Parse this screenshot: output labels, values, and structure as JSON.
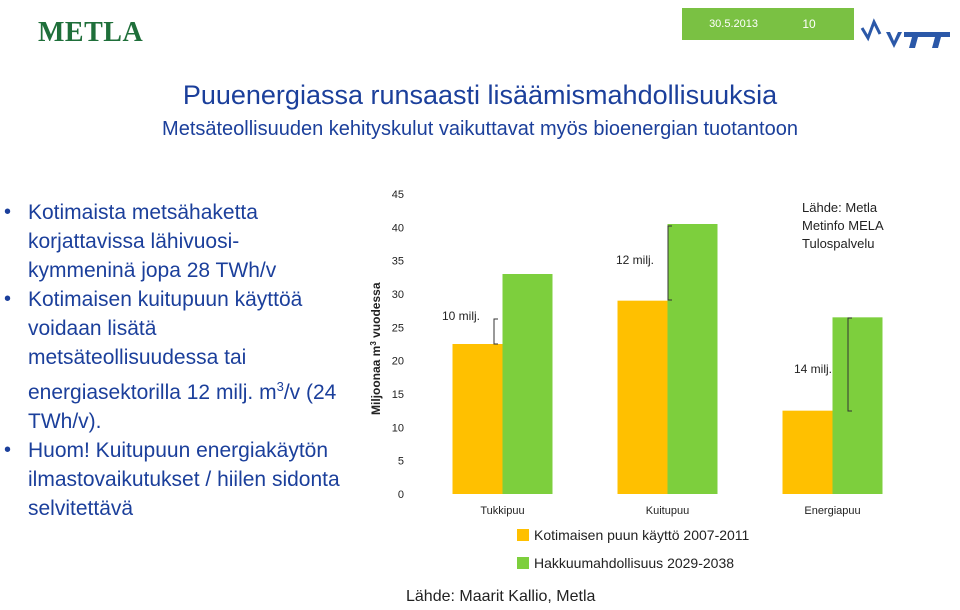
{
  "header": {
    "logo_text": "METLA",
    "date": "30.5.2013",
    "page_number": "10",
    "colors": {
      "accent_green": "#7ac143",
      "title_blue": "#1b3f9b",
      "logo_green": "#1f6f3a",
      "vtt_blue": "#2b58a8"
    }
  },
  "title": "Puuenergiassa runsaasti lisäämismahdollisuuksia",
  "subtitle": "Metsäteollisuuden kehityskulut vaikuttavat myös bioenergian tuotantoon",
  "bullets": [
    {
      "text": "Kotimaista metsähaketta korjattavissa lähivuosi-kymmeninä jopa 28 TWh/v"
    },
    {
      "text_before": "Kotimaisen kuitupuun käyttöä voidaan lisätä metsäteollisuudessa tai energiasektorilla 12 milj. m",
      "sup": "3",
      "text_after": "/v (24 TWh/v)."
    },
    {
      "text": "Huom! Kuitupuun energiakäytön ilmastovaikutukset / hiilen sidonta selvitettävä"
    }
  ],
  "chart_data": {
    "type": "bar",
    "ylabel_main": "Miljoonaa m",
    "ylabel_sup": "3",
    "ylabel_rest": " vuodessa",
    "ylim": [
      0,
      45
    ],
    "yticks": [
      0,
      5,
      10,
      15,
      20,
      25,
      30,
      35,
      40,
      45
    ],
    "categories": [
      "Tukkipuu",
      "Kuitupuu",
      "Energiapuu"
    ],
    "series": [
      {
        "name": "Kotimaisen puun käyttö 2007-2011",
        "color": "#ffc000",
        "values": [
          22.5,
          29,
          12.5
        ]
      },
      {
        "name": "Hakkuumahdollisuus 2029-2038",
        "color": "#7dcf3d",
        "values": [
          33,
          40.5,
          26.5
        ]
      }
    ],
    "annotations": [
      "10 milj.",
      "12 milj.",
      "14 milj."
    ],
    "source_note": [
      "Lähde: Metla",
      "Metinfo MELA",
      "Tulospalvelu"
    ],
    "grid": false,
    "legend_position": "bottom"
  },
  "footer_source": "Lähde: Maarit Kallio, Metla"
}
